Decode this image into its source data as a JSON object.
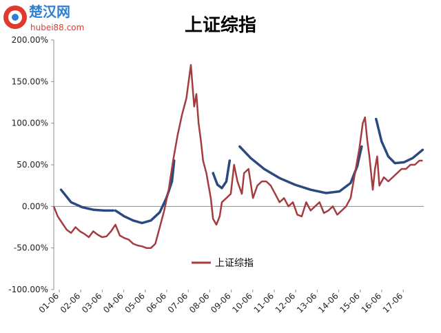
{
  "chart_data": {
    "type": "line",
    "title": "上证综指",
    "xlabel": "",
    "ylabel": "",
    "ylim": [
      -1.0,
      2.0
    ],
    "yticks": [
      -1.0,
      -0.5,
      0.0,
      0.5,
      1.0,
      1.5,
      2.0
    ],
    "ytick_labels": [
      "-100.00%",
      "-50.00%",
      "0.00%",
      "50.00%",
      "100.00%",
      "150.00%",
      "200.00%"
    ],
    "xtick_labels": [
      "01-06",
      "02-06",
      "03-06",
      "04-06",
      "05-06",
      "06-06",
      "07-06",
      "08-06",
      "09-06",
      "10-06",
      "11-06",
      "12-06",
      "13-06",
      "14-06",
      "15-06",
      "16-06",
      "17-06"
    ],
    "xlim": [
      2001.42,
      2018.1
    ],
    "grid": false,
    "legend": {
      "position": "inside-bottom-center",
      "entries": [
        "上证综指"
      ]
    },
    "series": [
      {
        "name": "上证综指",
        "color": "#a43b3e",
        "x": [
          2001.42,
          2001.6,
          2001.8,
          2002.0,
          2002.2,
          2002.4,
          2002.6,
          2002.8,
          2003.0,
          2003.2,
          2003.4,
          2003.6,
          2003.8,
          2004.0,
          2004.2,
          2004.4,
          2004.6,
          2004.8,
          2005.0,
          2005.2,
          2005.4,
          2005.6,
          2005.8,
          2006.0,
          2006.2,
          2006.4,
          2006.6,
          2006.8,
          2007.0,
          2007.2,
          2007.4,
          2007.6,
          2007.75,
          2007.85,
          2007.95,
          2008.05,
          2008.15,
          2008.3,
          2008.5,
          2008.6,
          2008.75,
          2008.9,
          2009.0,
          2009.2,
          2009.4,
          2009.55,
          2009.7,
          2009.9,
          2010.0,
          2010.2,
          2010.4,
          2010.6,
          2010.8,
          2011.0,
          2011.2,
          2011.4,
          2011.6,
          2011.8,
          2012.0,
          2012.2,
          2012.4,
          2012.6,
          2012.8,
          2013.0,
          2013.2,
          2013.4,
          2013.6,
          2013.8,
          2014.0,
          2014.2,
          2014.4,
          2014.6,
          2014.8,
          2015.0,
          2015.2,
          2015.35,
          2015.45,
          2015.55,
          2015.65,
          2015.8,
          2015.9,
          2016.0,
          2016.1,
          2016.3,
          2016.5,
          2016.7,
          2016.9,
          2017.1,
          2017.3,
          2017.5,
          2017.7,
          2017.9,
          2018.05
        ],
        "y": [
          0.0,
          -0.12,
          -0.2,
          -0.28,
          -0.32,
          -0.25,
          -0.3,
          -0.33,
          -0.37,
          -0.3,
          -0.34,
          -0.37,
          -0.36,
          -0.3,
          -0.22,
          -0.35,
          -0.38,
          -0.4,
          -0.45,
          -0.47,
          -0.48,
          -0.5,
          -0.5,
          -0.45,
          -0.25,
          -0.05,
          0.2,
          0.55,
          0.85,
          1.1,
          1.3,
          1.7,
          1.2,
          1.35,
          1.0,
          0.8,
          0.55,
          0.4,
          0.1,
          -0.15,
          -0.22,
          -0.12,
          0.05,
          0.1,
          0.15,
          0.5,
          0.3,
          0.15,
          0.4,
          0.45,
          0.1,
          0.25,
          0.3,
          0.3,
          0.25,
          0.15,
          0.05,
          0.1,
          0.0,
          0.05,
          -0.1,
          -0.12,
          0.05,
          -0.05,
          0.0,
          0.05,
          -0.08,
          -0.05,
          0.0,
          -0.1,
          -0.05,
          0.0,
          0.1,
          0.4,
          0.7,
          1.0,
          1.07,
          0.8,
          0.6,
          0.2,
          0.45,
          0.6,
          0.25,
          0.35,
          0.3,
          0.35,
          0.4,
          0.45,
          0.45,
          0.5,
          0.5,
          0.55,
          0.55
        ]
      }
    ],
    "annotations": [
      {
        "type": "trend-arc",
        "color": "#2a4a7f",
        "x": [
          2001.75,
          2002.2,
          2002.7,
          2003.2,
          2003.7,
          2004.1
        ],
        "y": [
          0.2,
          0.05,
          -0.01,
          -0.04,
          -0.05,
          -0.05
        ]
      },
      {
        "type": "trend-arc",
        "color": "#2a4a7f",
        "x": [
          2004.2,
          2004.6,
          2005.0,
          2005.4,
          2005.8,
          2006.2,
          2006.5,
          2006.75,
          2006.85
        ],
        "y": [
          -0.05,
          -0.12,
          -0.17,
          -0.2,
          -0.17,
          -0.07,
          0.1,
          0.3,
          0.55
        ]
      },
      {
        "type": "trend-arc",
        "color": "#2a4a7f",
        "x": [
          2008.6,
          2008.8,
          2009.0,
          2009.2,
          2009.35
        ],
        "y": [
          0.4,
          0.26,
          0.22,
          0.3,
          0.55
        ]
      },
      {
        "type": "trend-arc",
        "color": "#2a4a7f",
        "x": [
          2009.8,
          2010.3,
          2010.9,
          2011.6,
          2012.3,
          2013.0,
          2013.7,
          2014.3,
          2014.8,
          2015.1,
          2015.3
        ],
        "y": [
          0.72,
          0.58,
          0.45,
          0.34,
          0.26,
          0.2,
          0.16,
          0.18,
          0.28,
          0.48,
          0.72
        ]
      },
      {
        "type": "trend-arc",
        "color": "#2a4a7f",
        "x": [
          2015.95,
          2016.2,
          2016.5,
          2016.8,
          2017.2,
          2017.6,
          2018.05
        ],
        "y": [
          1.05,
          0.78,
          0.6,
          0.52,
          0.53,
          0.58,
          0.68
        ]
      }
    ]
  },
  "watermark": {
    "brand": "楚汉网",
    "url": "hubei88.com"
  },
  "colors": {
    "series": "#a43b3e",
    "trend": "#2a4a7f",
    "axis": "#8c8c8c",
    "text": "#000000"
  }
}
